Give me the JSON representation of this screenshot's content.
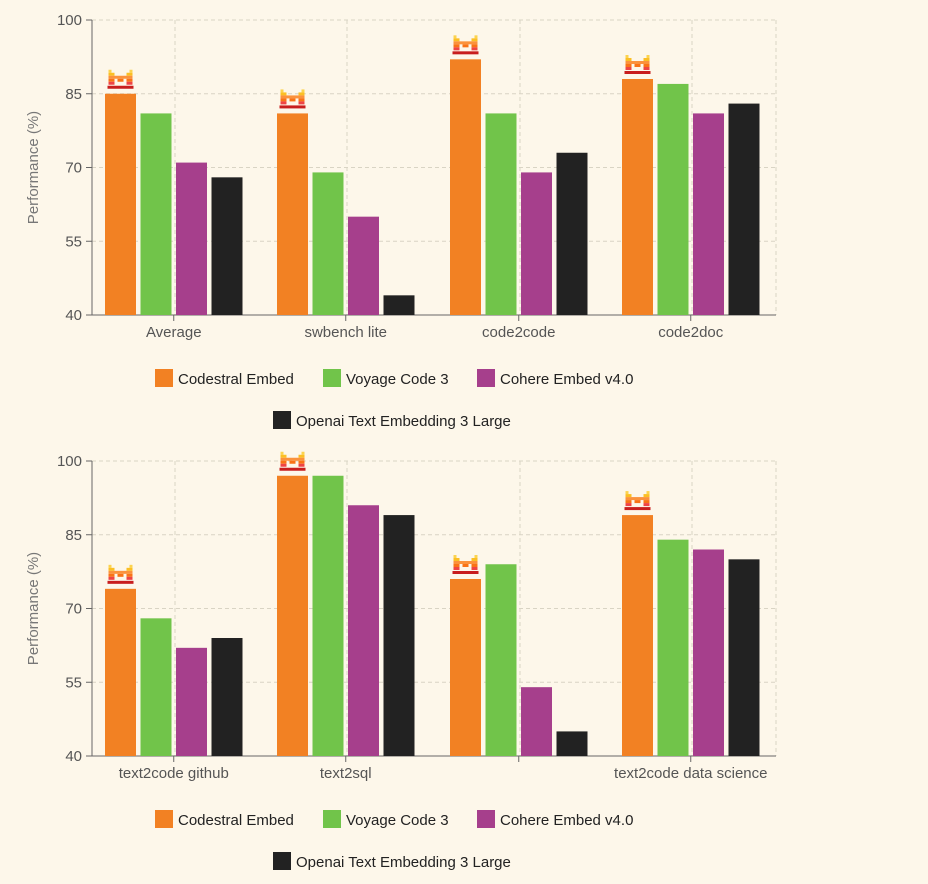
{
  "colors": {
    "background": "#fdf7ea",
    "grid": "#d9d4c4",
    "axis": "#666666",
    "tick_text": "#555555"
  },
  "legend": {
    "entries": [
      {
        "label": "Codestral Embed",
        "color": "#f28123"
      },
      {
        "label": "Voyage Code 3",
        "color": "#71c44a"
      },
      {
        "label": "Cohere Embed v4.0",
        "color": "#a63f8c"
      },
      {
        "label": "Openai Text Embedding 3 Large",
        "color": "#222222"
      }
    ]
  },
  "chart_data": [
    {
      "type": "bar",
      "title": "",
      "xlabel": "",
      "ylabel": "Performance (%)",
      "ylim": [
        40,
        100
      ],
      "yticks": [
        40,
        55,
        70,
        85,
        100
      ],
      "grid": true,
      "categories": [
        "Average",
        "swbench lite",
        "code2code",
        "code2doc"
      ],
      "series": [
        {
          "name": "Codestral Embed",
          "values": [
            85,
            81,
            92,
            88
          ]
        },
        {
          "name": "Voyage Code 3",
          "values": [
            81,
            69,
            81,
            87
          ]
        },
        {
          "name": "Cohere Embed v4.0",
          "values": [
            71,
            60,
            69,
            81
          ]
        },
        {
          "name": "Openai Text Embedding 3 Large",
          "values": [
            68,
            44,
            73,
            83
          ]
        }
      ],
      "winner_marker": {
        "series": "Codestral Embed",
        "icon": "mistral-logo-icon"
      }
    },
    {
      "type": "bar",
      "title": "",
      "xlabel": "",
      "ylabel": "Performance (%)",
      "ylim": [
        40,
        100
      ],
      "yticks": [
        40,
        55,
        70,
        85,
        100
      ],
      "grid": true,
      "categories": [
        "text2code github",
        "text2sql",
        "",
        "text2code data science"
      ],
      "series": [
        {
          "name": "Codestral Embed",
          "values": [
            74,
            97,
            76,
            89
          ]
        },
        {
          "name": "Voyage Code 3",
          "values": [
            68,
            97,
            79,
            84
          ]
        },
        {
          "name": "Cohere Embed v4.0",
          "values": [
            62,
            91,
            54,
            82
          ]
        },
        {
          "name": "Openai Text Embedding 3 Large",
          "values": [
            64,
            89,
            45,
            80
          ]
        }
      ],
      "winner_marker": {
        "series": "Codestral Embed",
        "icon": "mistral-logo-icon"
      }
    }
  ]
}
